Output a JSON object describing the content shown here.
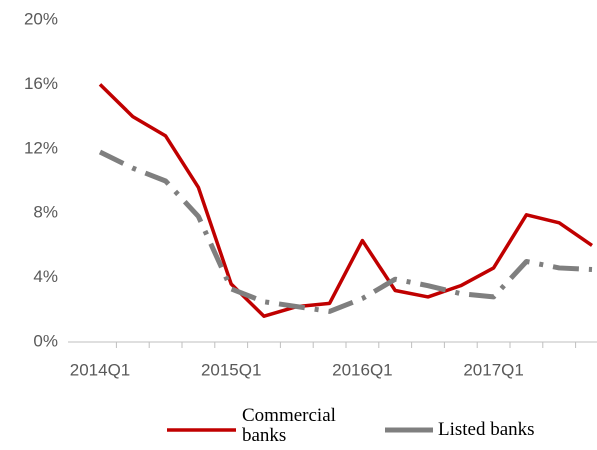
{
  "chart_data": {
    "type": "line",
    "categories": [
      "2014Q1",
      null,
      null,
      null,
      "2015Q1",
      null,
      null,
      null,
      "2016Q1",
      null,
      null,
      null,
      "2017Q1",
      null,
      null,
      null
    ],
    "series": [
      {
        "name": "Commercial banks",
        "color": "#c00000",
        "values": [
          16,
          14,
          12.8,
          9.6,
          3.6,
          1.6,
          2.2,
          2.4,
          6.3,
          3.2,
          2.8,
          3.5,
          4.6,
          7.9,
          7.4,
          6.0
        ]
      },
      {
        "name": "Listed banks",
        "color": "#7f7f7f",
        "values": [
          11.8,
          10.8,
          10.0,
          7.8,
          3.3,
          2.5,
          2.2,
          1.9,
          2.7,
          3.9,
          3.5,
          3.0,
          2.8,
          5.0,
          4.6,
          4.5
        ]
      }
    ],
    "ylim": [
      0,
      20
    ],
    "yticks": [
      {
        "value": 0,
        "label": "0%"
      },
      {
        "value": 4,
        "label": "4%"
      },
      {
        "value": 8,
        "label": "8%"
      },
      {
        "value": 12,
        "label": "12%"
      },
      {
        "value": 16,
        "label": "16%"
      },
      {
        "value": 20,
        "label": "20%"
      }
    ],
    "grid": false
  }
}
